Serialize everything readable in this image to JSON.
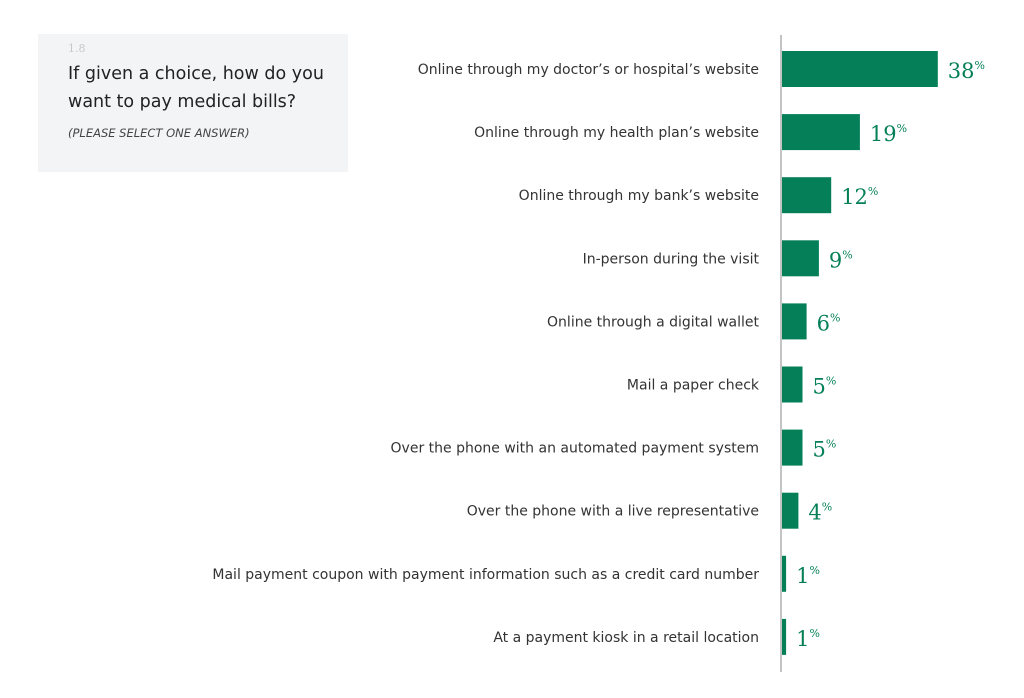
{
  "question": {
    "number": "1.8",
    "title": "If given a choice, how do you want to pay medical bills?",
    "subtitle": "(PLEASE SELECT ONE ANSWER)"
  },
  "chart_data": {
    "type": "bar",
    "orientation": "horizontal",
    "title": "If given a choice, how do you want to pay medical bills?",
    "categories": [
      "Online through my doctor’s or hospital’s website",
      "Online through my health plan’s website",
      "Online through my bank’s website",
      "In-person during the visit",
      "Online through a digital wallet",
      "Mail a paper check",
      "Over the phone with an automated payment system",
      "Over the phone with a live representative",
      "Mail payment coupon with payment information such as a credit card number",
      "At a payment kiosk in a retail location"
    ],
    "values": [
      38,
      19,
      12,
      9,
      6,
      5,
      5,
      4,
      1,
      1
    ],
    "unit": "%",
    "xlim": [
      0,
      40
    ],
    "bar_color": "#047f58",
    "grid": false
  }
}
